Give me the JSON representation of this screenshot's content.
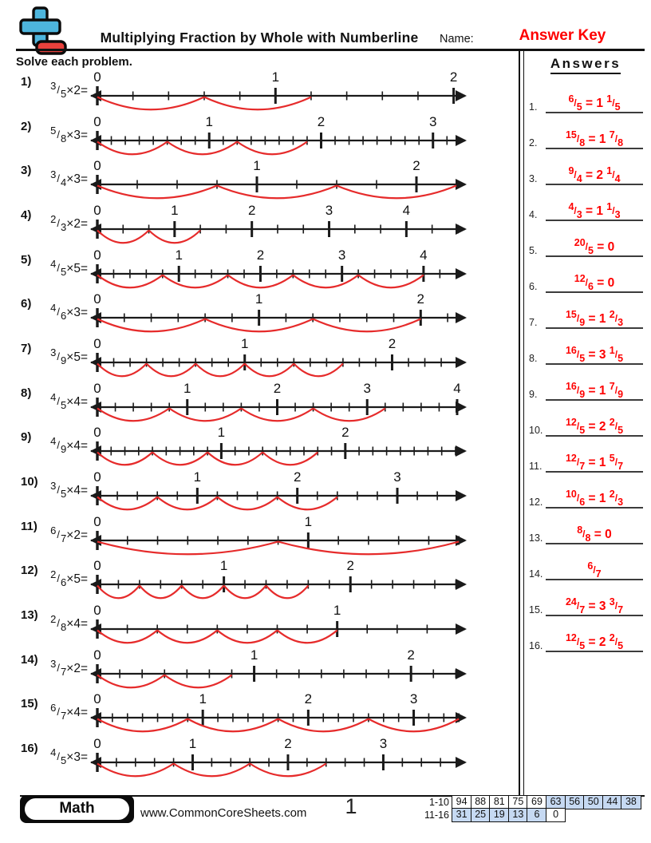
{
  "header": {
    "title": "Multiplying Fraction by Whole with Numberline",
    "name_label": "Name:",
    "answer_key": "Answer Key",
    "instructions": "Solve each problem."
  },
  "problems": [
    {
      "label": "1)",
      "numerator": "3",
      "denominator": "5",
      "multiplier": "2",
      "whole_labels": [
        0,
        1,
        2
      ],
      "line_end": 2.06
    },
    {
      "label": "2)",
      "numerator": "5",
      "denominator": "8",
      "multiplier": "3",
      "whole_labels": [
        0,
        1,
        2,
        3
      ],
      "line_end": 3.28
    },
    {
      "label": "3)",
      "numerator": "3",
      "denominator": "4",
      "multiplier": "3",
      "whole_labels": [
        0,
        1,
        2
      ],
      "line_end": 2.3
    },
    {
      "label": "4)",
      "numerator": "2",
      "denominator": "3",
      "multiplier": "2",
      "whole_labels": [
        0,
        1,
        2,
        3,
        4
      ],
      "line_end": 4.75
    },
    {
      "label": "5)",
      "numerator": "4",
      "denominator": "5",
      "multiplier": "5",
      "whole_labels": [
        0,
        1,
        2,
        3,
        4
      ],
      "line_end": 4.5
    },
    {
      "label": "6)",
      "numerator": "4",
      "denominator": "6",
      "multiplier": "3",
      "whole_labels": [
        0,
        1,
        2
      ],
      "line_end": 2.27
    },
    {
      "label": "7)",
      "numerator": "3",
      "denominator": "9",
      "multiplier": "5",
      "whole_labels": [
        0,
        1,
        2
      ],
      "line_end": 2.49
    },
    {
      "label": "8)",
      "numerator": "4",
      "denominator": "5",
      "multiplier": "4",
      "whole_labels": [
        0,
        1,
        2,
        3,
        4
      ],
      "line_end": 4.08
    },
    {
      "label": "9)",
      "numerator": "4",
      "denominator": "9",
      "multiplier": "4",
      "whole_labels": [
        0,
        1,
        2
      ],
      "line_end": 2.96
    },
    {
      "label": "10)",
      "numerator": "3",
      "denominator": "5",
      "multiplier": "4",
      "whole_labels": [
        0,
        1,
        2,
        3
      ],
      "line_end": 3.67
    },
    {
      "label": "11)",
      "numerator": "6",
      "denominator": "7",
      "multiplier": "2",
      "whole_labels": [
        0,
        1
      ],
      "line_end": 1.74
    },
    {
      "label": "12)",
      "numerator": "2",
      "denominator": "6",
      "multiplier": "5",
      "whole_labels": [
        0,
        1,
        2
      ],
      "line_end": 2.9
    },
    {
      "label": "13)",
      "numerator": "2",
      "denominator": "8",
      "multiplier": "4",
      "whole_labels": [
        0,
        1
      ],
      "line_end": 1.53
    },
    {
      "label": "14)",
      "numerator": "3",
      "denominator": "7",
      "multiplier": "2",
      "whole_labels": [
        0,
        1,
        2
      ],
      "line_end": 2.34
    },
    {
      "label": "15)",
      "numerator": "6",
      "denominator": "7",
      "multiplier": "4",
      "whole_labels": [
        0,
        1,
        2,
        3
      ],
      "line_end": 3.48
    },
    {
      "label": "16)",
      "numerator": "4",
      "denominator": "5",
      "multiplier": "3",
      "whole_labels": [
        0,
        1,
        2,
        3
      ],
      "line_end": 3.85
    }
  ],
  "answers_panel": {
    "heading": "Answers",
    "items": [
      {
        "label": "1.",
        "improper_n": "6",
        "improper_d": "5",
        "whole": "1",
        "rem_n": "1",
        "rem_d": "5"
      },
      {
        "label": "2.",
        "improper_n": "15",
        "improper_d": "8",
        "whole": "1",
        "rem_n": "7",
        "rem_d": "8"
      },
      {
        "label": "3.",
        "improper_n": "9",
        "improper_d": "4",
        "whole": "2",
        "rem_n": "1",
        "rem_d": "4"
      },
      {
        "label": "4.",
        "improper_n": "4",
        "improper_d": "3",
        "whole": "1",
        "rem_n": "1",
        "rem_d": "3"
      },
      {
        "label": "5.",
        "improper_n": "20",
        "improper_d": "5",
        "whole": "0"
      },
      {
        "label": "6.",
        "improper_n": "12",
        "improper_d": "6",
        "whole": "0"
      },
      {
        "label": "7.",
        "improper_n": "15",
        "improper_d": "9",
        "whole": "1",
        "rem_n": "2",
        "rem_d": "3"
      },
      {
        "label": "8.",
        "improper_n": "16",
        "improper_d": "5",
        "whole": "3",
        "rem_n": "1",
        "rem_d": "5"
      },
      {
        "label": "9.",
        "improper_n": "16",
        "improper_d": "9",
        "whole": "1",
        "rem_n": "7",
        "rem_d": "9"
      },
      {
        "label": "10.",
        "improper_n": "12",
        "improper_d": "5",
        "whole": "2",
        "rem_n": "2",
        "rem_d": "5"
      },
      {
        "label": "11.",
        "improper_n": "12",
        "improper_d": "7",
        "whole": "1",
        "rem_n": "5",
        "rem_d": "7"
      },
      {
        "label": "12.",
        "improper_n": "10",
        "improper_d": "6",
        "whole": "1",
        "rem_n": "2",
        "rem_d": "3"
      },
      {
        "label": "13.",
        "improper_n": "8",
        "improper_d": "8",
        "whole": "0"
      },
      {
        "label": "14.",
        "improper_n": "6",
        "improper_d": "7"
      },
      {
        "label": "15.",
        "improper_n": "24",
        "improper_d": "7",
        "whole": "3",
        "rem_n": "3",
        "rem_d": "7"
      },
      {
        "label": "16.",
        "improper_n": "12",
        "improper_d": "5",
        "whole": "2",
        "rem_n": "2",
        "rem_d": "5"
      }
    ]
  },
  "footer": {
    "subject": "Math",
    "website": "www.CommonCoreSheets.com",
    "page_number": "1",
    "score_rows": [
      {
        "label": "1-10",
        "cells": [
          {
            "v": "94",
            "hl": false
          },
          {
            "v": "88",
            "hl": false
          },
          {
            "v": "81",
            "hl": false
          },
          {
            "v": "75",
            "hl": false
          },
          {
            "v": "69",
            "hl": false
          },
          {
            "v": "63",
            "hl": true
          },
          {
            "v": "56",
            "hl": true
          },
          {
            "v": "50",
            "hl": true
          },
          {
            "v": "44",
            "hl": true
          },
          {
            "v": "38",
            "hl": true
          }
        ]
      },
      {
        "label": "11-16",
        "cells": [
          {
            "v": "31",
            "hl": true
          },
          {
            "v": "25",
            "hl": true
          },
          {
            "v": "19",
            "hl": true
          },
          {
            "v": "13",
            "hl": true
          },
          {
            "v": "6",
            "hl": true
          },
          {
            "v": "0",
            "hl": false
          }
        ]
      }
    ]
  },
  "colors": {
    "accent_red": "#fe0000",
    "arc_red": "#e62b2b",
    "line_black": "#1a1a1a",
    "highlight_blue": "#c6d9f2",
    "logo_blue": "#4db5dd",
    "logo_red": "#e8413c"
  }
}
